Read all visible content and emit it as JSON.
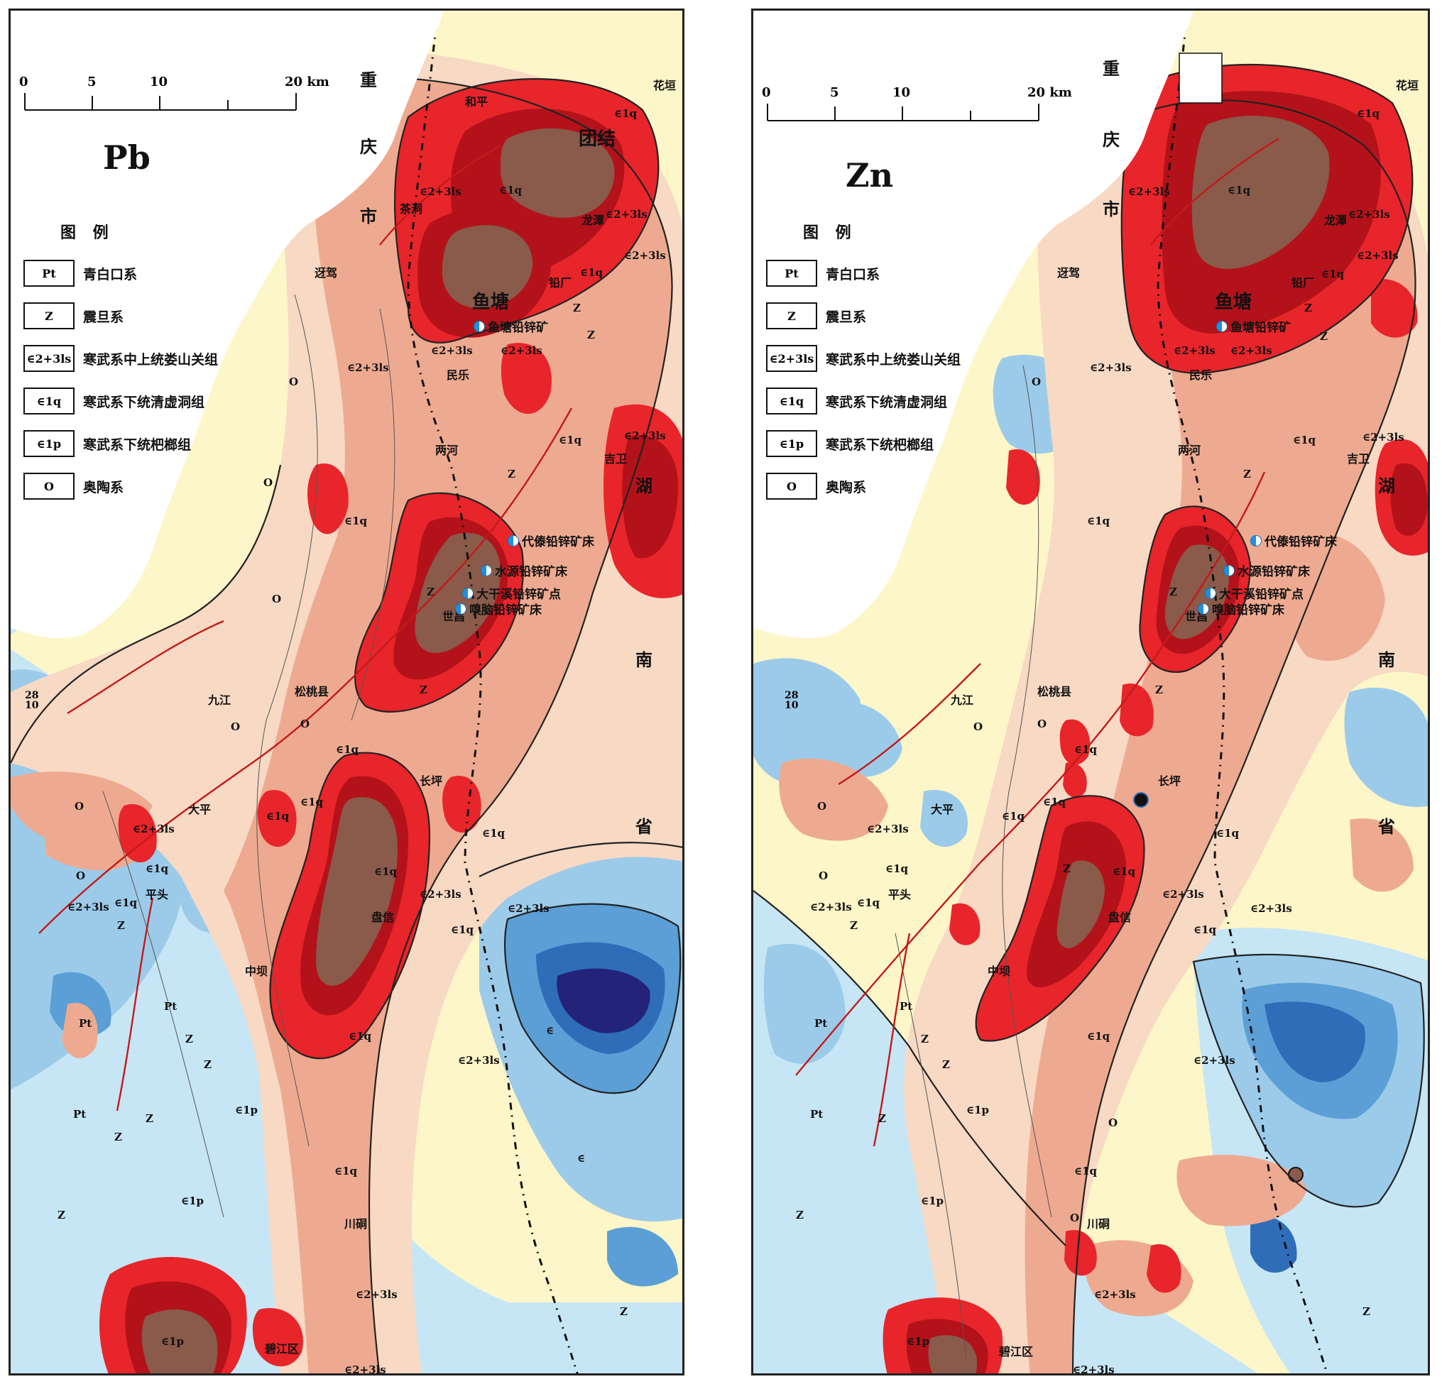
{
  "panels": [
    {
      "id": "pb",
      "element": "Pb",
      "scale": {
        "ticks": [
          "0",
          "5",
          "10",
          "20 km"
        ]
      },
      "legend_title": "图  例",
      "legend": [
        {
          "code": "Pt",
          "label": "青白口系"
        },
        {
          "code": "Z",
          "label": "震旦系"
        },
        {
          "code": "∈2+3ls",
          "label": "寒武系中上统娄山关组"
        },
        {
          "code": "∈1q",
          "label": "寒武系下统清虚洞组"
        },
        {
          "code": "∈1p",
          "label": "寒武系下统杷榔组"
        },
        {
          "code": "O",
          "label": "奥陶系"
        }
      ],
      "province_labels": [
        "重",
        "庆",
        "市",
        "湖",
        "南",
        "省"
      ],
      "places": [
        "花垣",
        "和平",
        "团结",
        "茶洞",
        "龙潭",
        "迓驾",
        "铅厂",
        "鱼塘",
        "民乐",
        "两河",
        "吉卫",
        "九江",
        "松桃县",
        "大平",
        "长坪",
        "平头",
        "盘信",
        "中坝",
        "川硐",
        "碧江区",
        "世昌"
      ],
      "mines": [
        "鱼塘铅锌矿",
        "代傣铅锌矿床",
        "水源铅锌矿床",
        "大干溪铅锌矿点",
        "嗅脑铅锌矿床"
      ],
      "formation_labels": [
        "∈1q",
        "∈2+3ls",
        "Z",
        "O",
        "∈1p",
        "Pt",
        "∈"
      ],
      "lat_label": [
        "28",
        "10"
      ]
    },
    {
      "id": "zn",
      "element": "Zn",
      "scale": {
        "ticks": [
          "0",
          "5",
          "10",
          "20 km"
        ]
      },
      "legend_title": "图  例",
      "legend": [
        {
          "code": "Pt",
          "label": "青白口系"
        },
        {
          "code": "Z",
          "label": "震旦系"
        },
        {
          "code": "∈2+3ls",
          "label": "寒武系中上统娄山关组"
        },
        {
          "code": "∈1q",
          "label": "寒武系下统清虚洞组"
        },
        {
          "code": "∈1p",
          "label": "寒武系下统杷榔组"
        },
        {
          "code": "O",
          "label": "奥陶系"
        }
      ],
      "province_labels": [
        "重",
        "庆",
        "市",
        "湖",
        "南",
        "省"
      ],
      "places": [
        "花垣",
        "龙潭",
        "迓驾",
        "铅厂",
        "鱼塘",
        "民乐",
        "两河",
        "吉卫",
        "九江",
        "松桃县",
        "大平",
        "长坪",
        "平头",
        "盘信",
        "中坝",
        "川硐",
        "碧江区",
        "世昌"
      ],
      "mines": [
        "鱼塘铅锌矿",
        "代傣铅锌矿床",
        "水源铅锌矿床",
        "大干溪铅锌矿点",
        "嗅脑铅锌矿床"
      ],
      "formation_labels": [
        "∈1q",
        "∈2+3ls",
        "Z",
        "O",
        "∈1p",
        "Pt"
      ],
      "lat_label": [
        "28",
        "10"
      ]
    }
  ],
  "colors": {
    "background_yellow": "#fdf6c8",
    "pale_pink": "#f7d9c4",
    "salmon": "#eeaa90",
    "red": "#e8252a",
    "dark_red": "#b3121a",
    "brown": "#8a5a4a",
    "pale_blue": "#c6e6f5",
    "light_blue": "#9ccbea",
    "mid_blue": "#5b9fd6",
    "blue": "#2f6db8",
    "navy": "#23237a",
    "fault_red": "#c41a1a"
  }
}
